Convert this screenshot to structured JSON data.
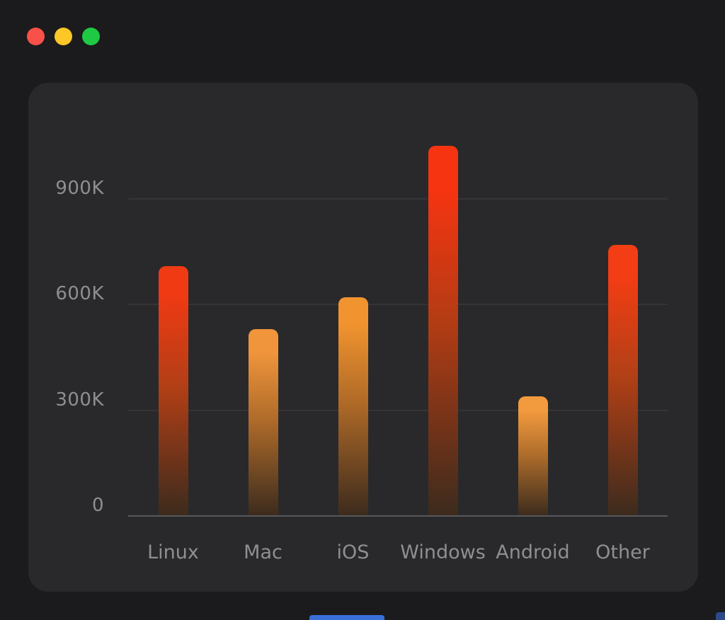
{
  "window": {
    "background_color": "#1b1b1d",
    "card_background_color": "#29292b",
    "titlebar": {
      "traffic_lights": [
        {
          "name": "close",
          "color": "#f95149"
        },
        {
          "name": "minimize",
          "color": "#fcc727"
        },
        {
          "name": "zoom",
          "color": "#1ec944"
        }
      ]
    },
    "decorations": {
      "bottom_peek_color": "#3a6fd8",
      "corner_peek_color": "#2b4a87"
    }
  },
  "chart_data": {
    "type": "bar",
    "title": "",
    "xlabel": "",
    "ylabel": "",
    "categories": [
      "Linux",
      "Mac",
      "iOS",
      "Windows",
      "Android",
      "Other"
    ],
    "values": [
      710000,
      530000,
      620000,
      1050000,
      340000,
      770000
    ],
    "ylim": [
      0,
      1100000
    ],
    "yticks": [
      {
        "label": "0",
        "value": 0
      },
      {
        "label": "300K",
        "value": 300000
      },
      {
        "label": "600K",
        "value": 600000
      },
      {
        "label": "900K",
        "value": 900000
      }
    ],
    "grid": "horizontal",
    "legend": "none",
    "gridline_color": "#353538",
    "axis_line_color": "#58585c",
    "tick_label_color": "#8e8e93",
    "bar_gradients": [
      {
        "top": "#ef3a14",
        "mid": "#b23f16",
        "bottom": "#3c2b1d"
      },
      {
        "top": "#f0953c",
        "mid": "#b06c2a",
        "bottom": "#3c2b1d"
      },
      {
        "top": "#f1942f",
        "mid": "#b06a27",
        "bottom": "#3c2b1d"
      },
      {
        "top": "#f63411",
        "mid": "#b23c14",
        "bottom": "#3c2b1d"
      },
      {
        "top": "#f29a3e",
        "mid": "#b06e2b",
        "bottom": "#3c2b1d"
      },
      {
        "top": "#f33d14",
        "mid": "#b24016",
        "bottom": "#3c2b1d"
      }
    ]
  }
}
